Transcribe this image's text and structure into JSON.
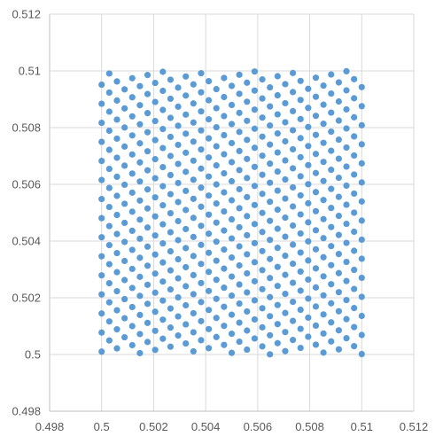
{
  "chart_data": {
    "type": "scatter",
    "title": "",
    "xlabel": "",
    "ylabel": "",
    "xlim": [
      0.498,
      0.512
    ],
    "ylim": [
      0.498,
      0.512
    ],
    "x_ticks": [
      "0.498",
      "0.5",
      "0.502",
      "0.504",
      "0.506",
      "0.508",
      "0.51",
      "0.512"
    ],
    "y_ticks": [
      "0.498",
      "0.5",
      "0.502",
      "0.504",
      "0.506",
      "0.508",
      "0.51",
      "0.512"
    ],
    "grid": true,
    "legend": "none",
    "marker_color": "#5b9bd5",
    "series": [
      {
        "pattern": "diagonal lattice of points filling the square [0.5, 0.51] x [0.5, 0.51]",
        "x_range": [
          0.5,
          0.51
        ],
        "y_range": [
          0.5,
          0.51
        ],
        "points_per_line": 34,
        "line_count": 29
      }
    ]
  }
}
